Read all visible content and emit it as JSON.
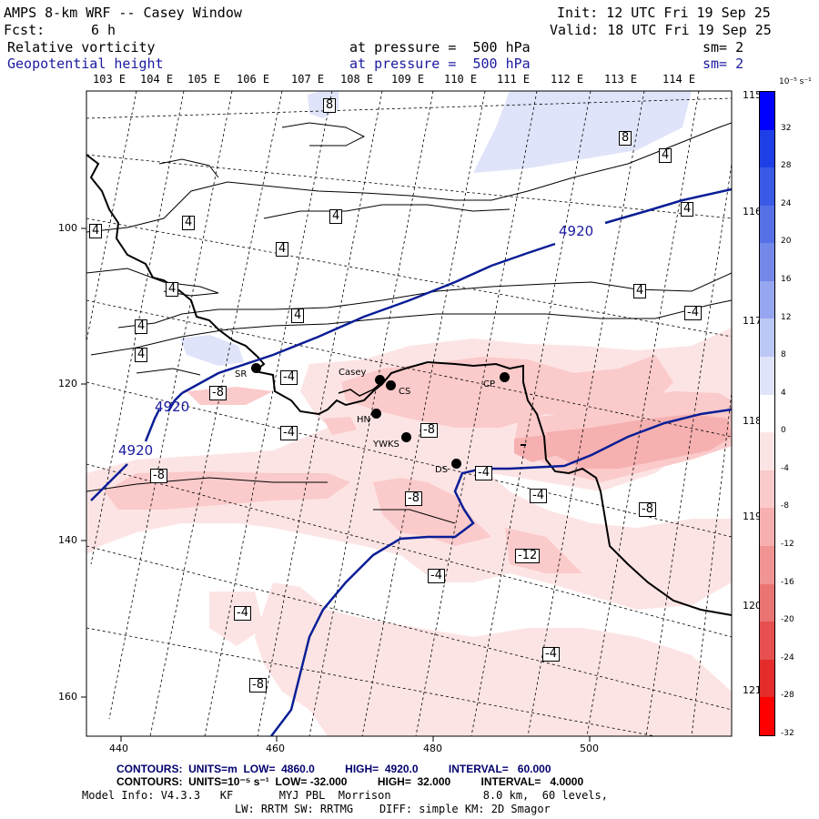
{
  "header": {
    "model_title": "AMPS 8-km WRF -- Casey Window",
    "init": "Init: 12 UTC Fri 19 Sep 25",
    "fcst_label": "Fcst:",
    "fcst_value": "6 h",
    "valid": "Valid: 18 UTC Fri 19 Sep 25",
    "field1_name": "Relative vorticity",
    "field1_level": "at pressure =  500 hPa",
    "field1_sm": "sm= 2",
    "field2_name": "Geopotential height",
    "field2_level": "at pressure =  500 hPa",
    "field2_sm": "sm= 2"
  },
  "map": {
    "lon_top": [
      "103 E",
      "104 E",
      "105 E",
      "106 E",
      "107 E",
      "108 E",
      "109 E",
      "110 E",
      "111 E",
      "112 E",
      "113 E",
      "114 E"
    ],
    "lon_right": [
      "115 E",
      "116 E",
      "117 E",
      "118 E",
      "119 E",
      "120 E",
      "121 E"
    ],
    "x_ticks": [
      "440",
      "460",
      "480",
      "500"
    ],
    "y_ticks": [
      "100",
      "120",
      "140",
      "160"
    ],
    "height_labels": [
      "4920",
      "4920",
      "4920"
    ],
    "stations": [
      "SR",
      "Casey",
      "CS",
      "CP",
      "HN",
      "YWKS",
      "DS"
    ],
    "contour_labels": [
      "8",
      "8",
      "4",
      "4",
      "4",
      "4",
      "4",
      "4",
      "4",
      "4",
      "4",
      "4",
      "4",
      "-4",
      "-4",
      "-4",
      "-4",
      "-4",
      "-4",
      "-4",
      "-4",
      "-8",
      "-8",
      "-8",
      "-8",
      "-8",
      "-8",
      "-12"
    ]
  },
  "colorbar": {
    "unit": "10⁻⁵ s⁻¹",
    "labels": [
      "32",
      "28",
      "24",
      "20",
      "16",
      "12",
      "8",
      "4",
      "0",
      "-4",
      "-8",
      "-12",
      "-16",
      "-20",
      "-24",
      "-28",
      "-32"
    ],
    "colors": [
      "#0000ff",
      "#1f3fe6",
      "#3a5ae6",
      "#5670e6",
      "#7488ea",
      "#97a6f0",
      "#bcc8f4",
      "#dfe4fa",
      "#ffffff",
      "#fde4e4",
      "#fbcaca",
      "#f6b0b0",
      "#f09494",
      "#ea7474",
      "#e65050",
      "#e52c2c",
      "#ff0000"
    ]
  },
  "footer": {
    "contours_height": "CONTOURS:  UNITS=m  LOW=  4860.0          HIGH=  4920.0          INTERVAL=   60.000",
    "contours_vort": "CONTOURS:  UNITS=10⁻⁵ s⁻¹  LOW= -32.000          HIGH=  32.000          INTERVAL=   4.0000",
    "model_info": "Model Info: V4.3.3   KF       MYJ PBL  Morrison              8.0 km,  60 levels,",
    "physics": "LW: RRTM SW: RRTMG    DIFF: simple KM: 2D Smagor"
  }
}
